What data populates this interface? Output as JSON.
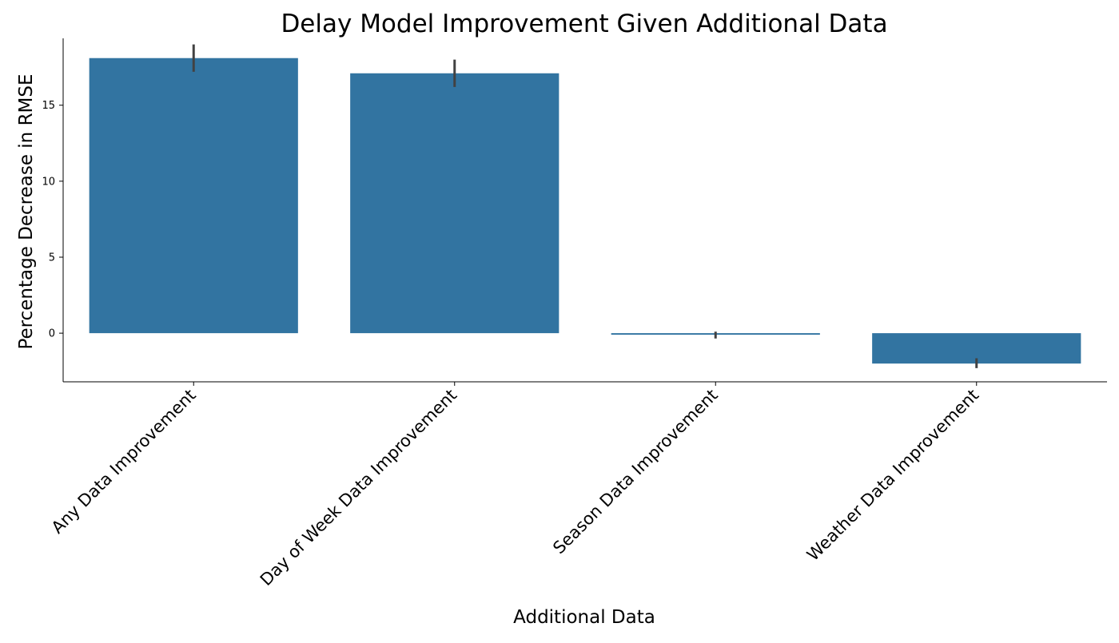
{
  "chart_data": {
    "type": "bar",
    "title": "Delay Model Improvement Given Additional Data",
    "xlabel": "Additional Data",
    "ylabel": "Percentage Decrease in RMSE",
    "categories": [
      "Any Data Improvement",
      "Day of Week Data Improvement",
      "Season Data Improvement",
      "Weather Data Improvement"
    ],
    "values": [
      18.1,
      17.1,
      -0.1,
      -2.0
    ],
    "error_low": [
      17.2,
      16.2,
      -0.35,
      -2.3
    ],
    "error_high": [
      19.0,
      18.0,
      0.1,
      -1.65
    ],
    "ylim": [
      -3.2,
      19.4
    ],
    "yticks": [
      0,
      5,
      10,
      15
    ],
    "grid": false,
    "colors": {
      "bar": "#3274a1",
      "errorbar": "#424242",
      "axis": "#000000"
    }
  }
}
